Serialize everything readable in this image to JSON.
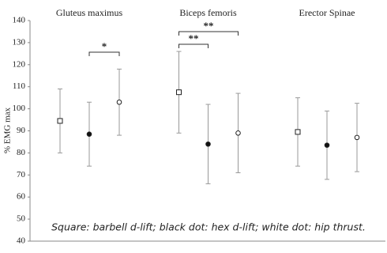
{
  "chart_data": {
    "type": "errorbar",
    "categories": [
      "Gluteus maximus",
      "Biceps femoris",
      "Erector Spinae"
    ],
    "y_label": "% EMG max",
    "ylim": [
      40,
      140
    ],
    "yticks": [
      40,
      50,
      60,
      70,
      80,
      90,
      100,
      110,
      120,
      130,
      140
    ],
    "series": [
      {
        "marker": "square",
        "fill": "#ffffff",
        "color": "#222222",
        "values": [
          94.5,
          107.5,
          89.5
        ],
        "errors": [
          14.5,
          18.5,
          15.5
        ]
      },
      {
        "marker": "circle",
        "fill": "#111111",
        "color": "#222222",
        "values": [
          88.5,
          84,
          83.5
        ],
        "errors": [
          14.5,
          18,
          15.5
        ]
      },
      {
        "marker": "circle",
        "fill": "#ffffff",
        "color": "#222222",
        "values": [
          103,
          89,
          87
        ],
        "errors": [
          15,
          18,
          15.5
        ]
      }
    ],
    "error_color": "#999999",
    "annotations": [
      {
        "label": "*",
        "category": 0,
        "series": [
          1,
          2
        ]
      },
      {
        "label": "**",
        "category": 1,
        "series": [
          0,
          1
        ]
      },
      {
        "label": "**",
        "category": 1,
        "series": [
          0,
          2
        ]
      }
    ],
    "note": "Square: barbell d-lift; black dot: hex d-lift; white dot: hip thrust."
  }
}
